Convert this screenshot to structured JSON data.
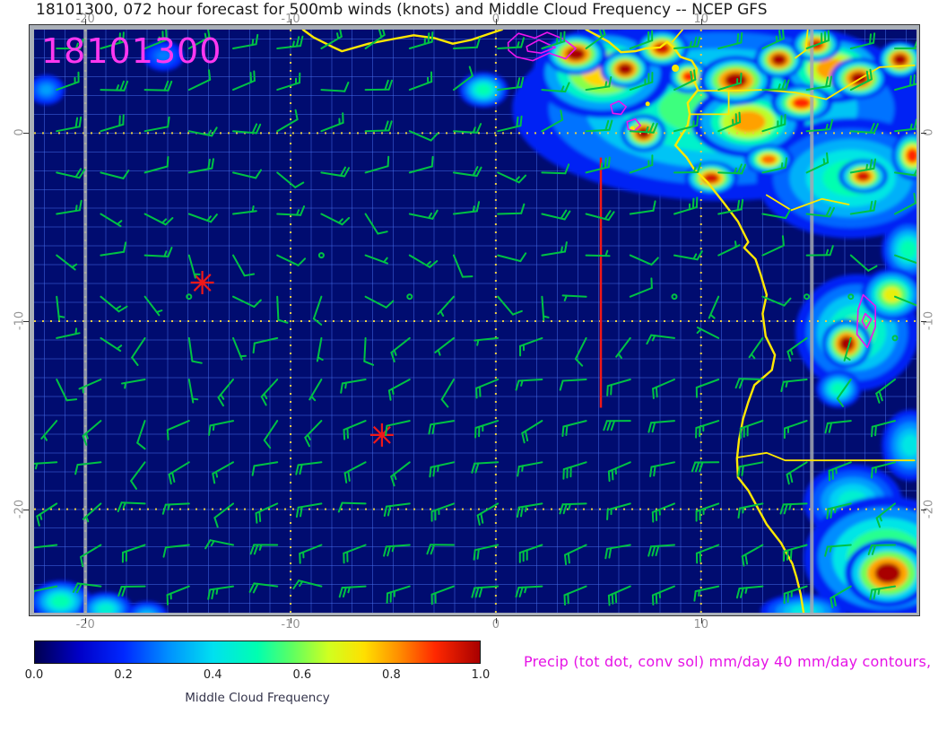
{
  "title": "18101300, 072 hour forecast for 500mb winds (knots) and Middle Cloud Frequency -- NCEP GFS",
  "timestamp_overlay": "18101300",
  "precip_caption": "Precip (tot dot, conv sol) mm/day 40 mm/day contours,",
  "axes": {
    "x_ticks": [
      {
        "value": -20,
        "label": "-20"
      },
      {
        "value": -10,
        "label": "-10"
      },
      {
        "value": 0,
        "label": "0"
      },
      {
        "value": 10,
        "label": "10"
      }
    ],
    "y_ticks": [
      {
        "value": 0,
        "label": "0"
      },
      {
        "value": -10,
        "label": "-10"
      },
      {
        "value": -20,
        "label": "-20"
      }
    ]
  },
  "colorbar": {
    "title": "Middle Cloud Frequency",
    "tick_labels": [
      "0.0",
      "0.2",
      "0.4",
      "0.6",
      "0.8",
      "1.0"
    ],
    "range": [
      0,
      1
    ]
  },
  "colors": {
    "stamp_magenta": "#ff38f0",
    "caption_magenta": "#e612e6",
    "contour_magenta": "#ee14ee",
    "barb_green": "#00c244",
    "coast_yellow": "#ffe800",
    "grid_dot_yellow": "#e8cc44",
    "marker_red": "#f01818",
    "gray_band": "rgba(162,168,178,0.85)"
  },
  "chart_data": {
    "type": "heatmap",
    "field": "middle_cloud_frequency",
    "overlays": [
      "500mb_wind_barbs_knots",
      "precip_contours_40mm_day",
      "coastlines_borders"
    ],
    "model": "NCEP GFS",
    "forecast_hour": 72,
    "cycle": "18101300",
    "lon_range": [
      -22.5,
      20.5
    ],
    "lat_range": [
      -25.5,
      5.5
    ],
    "colorbar_range": [
      0,
      1
    ],
    "colormap_stops": [
      [
        0,
        "#000050"
      ],
      [
        0.1,
        "#0000c8"
      ],
      [
        0.2,
        "#0028ff"
      ],
      [
        0.3,
        "#0090ff"
      ],
      [
        0.4,
        "#00e0f0"
      ],
      [
        0.5,
        "#00ffb0"
      ],
      [
        0.58,
        "#60ff60"
      ],
      [
        0.66,
        "#d0ff20"
      ],
      [
        0.74,
        "#ffe000"
      ],
      [
        0.82,
        "#ff8c00"
      ],
      [
        0.9,
        "#ff2800"
      ],
      [
        1,
        "#a80000"
      ]
    ],
    "cloud_blobs": [
      [
        11,
        1.3,
        10.2,
        4.9,
        0.55
      ],
      [
        17.3,
        -2.4,
        4.6,
        3.2,
        0.5
      ],
      [
        5.2,
        3.2,
        3.4,
        2.4,
        0.75
      ],
      [
        12.3,
        0.6,
        2.8,
        1.9,
        0.8
      ],
      [
        16.4,
        3.4,
        2.6,
        1.8,
        0.8
      ],
      [
        3.9,
        4.2,
        1.5,
        1.1,
        1
      ],
      [
        6.3,
        3.4,
        1.2,
        1,
        1
      ],
      [
        8.1,
        4.5,
        1.3,
        1,
        0.95
      ],
      [
        9.4,
        3,
        1,
        0.9,
        0.9
      ],
      [
        11.7,
        2.8,
        1.8,
        1.3,
        1
      ],
      [
        13.8,
        3.9,
        1.2,
        1,
        1
      ],
      [
        15.6,
        4.7,
        1.2,
        0.9,
        0.95
      ],
      [
        17.7,
        2.9,
        1.4,
        1.1,
        1
      ],
      [
        19.7,
        3.9,
        1.1,
        1,
        1
      ],
      [
        14.9,
        1.6,
        1.5,
        1,
        0.9
      ],
      [
        7.2,
        0,
        1.1,
        1,
        1
      ],
      [
        10.5,
        -2.4,
        1.3,
        0.9,
        0.95
      ],
      [
        13.3,
        -1.4,
        1.2,
        0.8,
        0.85
      ],
      [
        17.9,
        -2.3,
        1.2,
        0.9,
        0.95
      ],
      [
        20.3,
        -1.2,
        1,
        1.3,
        0.9
      ],
      [
        -0.6,
        2.3,
        1.2,
        0.95,
        0.5
      ],
      [
        -21.9,
        2.3,
        0.9,
        0.8,
        0.32
      ],
      [
        -16.2,
        4.1,
        1,
        0.8,
        0.28
      ],
      [
        20.1,
        -6.2,
        1.3,
        1.6,
        0.5
      ],
      [
        17.6,
        -10.6,
        3,
        3.1,
        0.55
      ],
      [
        19.3,
        -8.6,
        1.5,
        1.4,
        0.7
      ],
      [
        17.1,
        -11.2,
        1.2,
        1.3,
        1
      ],
      [
        16.7,
        -13.6,
        1.1,
        1,
        0.5
      ],
      [
        20.2,
        -16.6,
        1.4,
        1.9,
        0.42
      ],
      [
        17.4,
        -19.6,
        2.4,
        2,
        0.45
      ],
      [
        19,
        -22.6,
        4,
        3.3,
        0.65
      ],
      [
        19.1,
        -23.4,
        2.1,
        1.8,
        1
      ],
      [
        15,
        -25.4,
        2.1,
        0.9,
        0.42
      ],
      [
        -21.2,
        -24.9,
        1.5,
        1.1,
        0.5
      ],
      [
        -19,
        -25.3,
        1.3,
        0.9,
        0.45
      ],
      [
        -17,
        -25.6,
        1,
        0.7,
        0.35
      ]
    ],
    "coastlines": [
      [
        [
          -9.4,
          5.5
        ],
        [
          -8.9,
          5.1
        ],
        [
          -7.9,
          4.55
        ],
        [
          -7.5,
          4.35
        ],
        [
          -6.2,
          4.75
        ],
        [
          -5,
          5
        ],
        [
          -4,
          5.2
        ],
        [
          -3,
          5.05
        ],
        [
          -2.1,
          4.75
        ],
        [
          -1.2,
          4.95
        ],
        [
          -0.4,
          5.25
        ],
        [
          0.3,
          5.5
        ]
      ],
      [
        [
          4.4,
          5.5
        ],
        [
          5,
          5.15
        ],
        [
          5.5,
          4.85
        ],
        [
          6.1,
          4.3
        ],
        [
          6.8,
          4.35
        ],
        [
          7.3,
          4.5
        ],
        [
          8,
          4.55
        ],
        [
          8.35,
          4.85
        ],
        [
          8.7,
          4.5
        ],
        [
          9,
          4.05
        ],
        [
          9.55,
          3.85
        ],
        [
          9.8,
          3.4
        ],
        [
          9.65,
          2.8
        ],
        [
          9.85,
          2.3
        ],
        [
          9.35,
          1.6
        ],
        [
          9.45,
          1
        ],
        [
          9.35,
          0.4
        ],
        [
          9,
          -0.2
        ],
        [
          8.75,
          -0.65
        ],
        [
          9.3,
          -1.3
        ],
        [
          9.65,
          -1.9
        ],
        [
          10.3,
          -2.6
        ],
        [
          11.1,
          -3.7
        ],
        [
          11.8,
          -4.7
        ],
        [
          12.3,
          -5.8
        ],
        [
          12.1,
          -6.1
        ],
        [
          12.65,
          -6.7
        ],
        [
          12.9,
          -7.5
        ],
        [
          13.2,
          -8.6
        ],
        [
          13,
          -9.6
        ],
        [
          13.15,
          -10.8
        ],
        [
          13.6,
          -11.8
        ],
        [
          13.45,
          -12.6
        ],
        [
          12.6,
          -13.4
        ],
        [
          12.3,
          -14.3
        ],
        [
          12.05,
          -15.2
        ],
        [
          11.85,
          -16.3
        ],
        [
          11.75,
          -17.3
        ],
        [
          11.8,
          -18.3
        ],
        [
          12.3,
          -19
        ],
        [
          12.7,
          -19.8
        ],
        [
          13.2,
          -20.8
        ],
        [
          13.9,
          -21.8
        ],
        [
          14.45,
          -22.9
        ],
        [
          14.65,
          -23.6
        ],
        [
          14.85,
          -24.5
        ],
        [
          15,
          -25.5
        ]
      ]
    ],
    "islands": [
      {
        "lon": 8.75,
        "lat": 3.45,
        "r": 4
      },
      {
        "lon": 7.4,
        "lat": 1.55,
        "r": 2.5
      },
      {
        "lon": 6.65,
        "lat": 0.25,
        "r": 2.5
      }
    ],
    "borders": [
      [
        [
          9.85,
          2.25
        ],
        [
          11.35,
          2.25
        ]
      ],
      [
        [
          11.35,
          2.25
        ],
        [
          11.35,
          1
        ]
      ],
      [
        [
          9.45,
          1
        ],
        [
          11.35,
          1
        ]
      ],
      [
        [
          11.35,
          2.25
        ],
        [
          13.1,
          2.3
        ],
        [
          14.6,
          2.15
        ],
        [
          16.1,
          1.8
        ],
        [
          17.3,
          2.6
        ],
        [
          18.7,
          3.5
        ],
        [
          20.4,
          3.6
        ]
      ],
      [
        [
          15.2,
          5.5
        ],
        [
          15.1,
          4.4
        ],
        [
          14.6,
          4
        ]
      ],
      [
        [
          8.6,
          4.85
        ],
        [
          9.1,
          5.5
        ]
      ],
      [
        [
          13.2,
          -3.3
        ],
        [
          14.4,
          -4.1
        ],
        [
          15.9,
          -3.5
        ],
        [
          17.2,
          -3.8
        ]
      ],
      [
        [
          11.78,
          -17.25
        ],
        [
          13.2,
          -17
        ],
        [
          14.1,
          -17.4
        ],
        [
          20.4,
          -17.4
        ]
      ]
    ],
    "precip_contours": [
      [
        [
          0.6,
          4.8
        ],
        [
          1.1,
          5.3
        ],
        [
          1.9,
          5.05
        ],
        [
          2.5,
          5.35
        ],
        [
          3.3,
          5
        ],
        [
          3.9,
          4.5
        ],
        [
          3.4,
          3.95
        ],
        [
          2.6,
          4.25
        ],
        [
          1.8,
          3.85
        ],
        [
          1,
          4.05
        ],
        [
          0.62,
          4.4
        ]
      ],
      [
        [
          1.5,
          4.6
        ],
        [
          2.1,
          4.95
        ],
        [
          2.9,
          4.55
        ],
        [
          2.2,
          4.25
        ],
        [
          1.55,
          4.35
        ]
      ],
      [
        [
          5.6,
          1.5
        ],
        [
          6,
          1.7
        ],
        [
          6.35,
          1.4
        ],
        [
          6.1,
          1
        ],
        [
          5.7,
          1.05
        ]
      ],
      [
        [
          6.4,
          0.6
        ],
        [
          6.8,
          0.75
        ],
        [
          7.05,
          0.4
        ],
        [
          6.75,
          0.1
        ],
        [
          6.45,
          0.2
        ]
      ],
      [
        [
          17.9,
          -8.6
        ],
        [
          18.5,
          -9.2
        ],
        [
          18.5,
          -10.3
        ],
        [
          18.1,
          -11.4
        ],
        [
          17.6,
          -10.7
        ],
        [
          17.65,
          -9.4
        ]
      ],
      [
        [
          18,
          -9.6
        ],
        [
          18.3,
          -9.9
        ],
        [
          18.05,
          -10.4
        ],
        [
          17.85,
          -10
        ]
      ]
    ],
    "gray_lines": [
      -20,
      15.4
    ],
    "red_line": {
      "lon": 5.12,
      "lat_from": -1.3,
      "lat_to": -14.6
    },
    "red_markers": [
      {
        "lon": -14.3,
        "lat": -7.95
      },
      {
        "lon": -5.55,
        "lat": -16.05
      }
    ],
    "wind_grid": {
      "units": "knots",
      "level": "500mb",
      "lons": [
        -22,
        -11,
        0,
        10,
        20.5
      ],
      "lats": [
        5.5,
        -5,
        -15,
        -25.5
      ],
      "u": [
        [
          -22,
          -18,
          -16,
          -22,
          -25
        ],
        [
          -12,
          -8,
          -14,
          -18,
          -15
        ],
        [
          5,
          10,
          20,
          25,
          15
        ],
        [
          15,
          22,
          25,
          20,
          22
        ]
      ],
      "v": [
        [
          -5,
          -8,
          -5,
          -8,
          -5
        ],
        [
          2,
          5,
          3,
          -2,
          0
        ],
        [
          5,
          8,
          6,
          4,
          8
        ],
        [
          3,
          -2,
          5,
          8,
          2
        ]
      ],
      "lon_start": -21.4,
      "lon_step": 2.15,
      "cols": 20,
      "lat_start": 4.5,
      "lat_step": 2.2,
      "rows": 14,
      "wobble": 6
    }
  }
}
